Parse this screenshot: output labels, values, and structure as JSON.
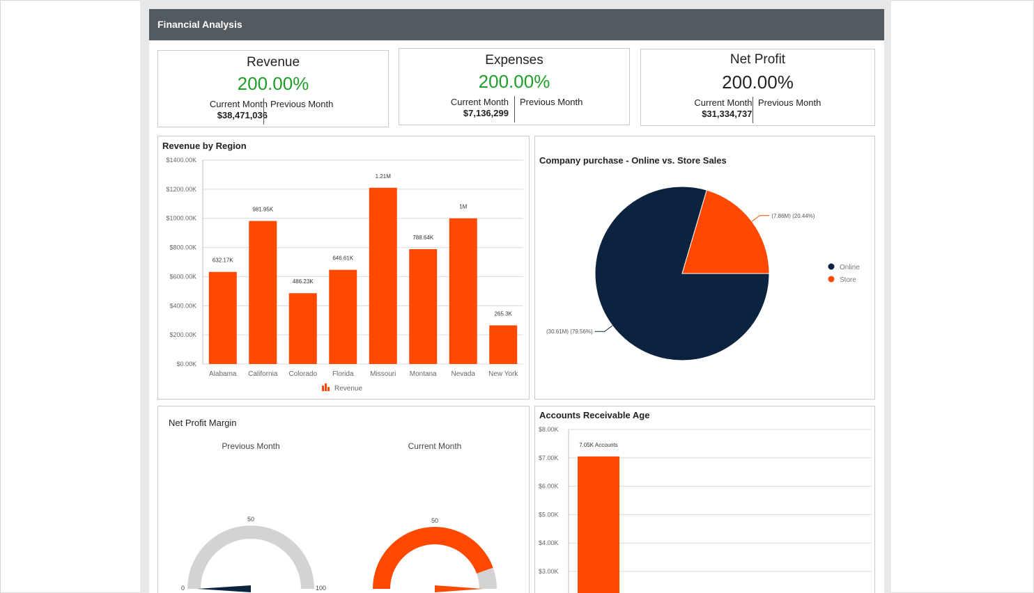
{
  "header": {
    "title": "Financial Analysis"
  },
  "kpis": [
    {
      "title": "Revenue",
      "value": "200.00%",
      "current_label": "Current Month",
      "current_amount": "$38,471,036",
      "previous_label": "Previous Month"
    },
    {
      "title": "Expenses",
      "value": "200.00%",
      "current_label": "Current Month",
      "current_amount": "$7,136,299",
      "previous_label": "Previous Month"
    },
    {
      "title": "Net Profit",
      "value": "200.00%",
      "current_label": "Current Month",
      "current_amount": "$31,334,737",
      "previous_label": "Previous Month"
    }
  ],
  "colors": {
    "accent": "#ff4800",
    "navy": "#0c2340",
    "green": "#1e9e28",
    "header_bg": "#535a60",
    "gauge_gray": "#d3d3d3"
  },
  "chart_data": [
    {
      "type": "bar",
      "title": "Revenue by Region",
      "categories": [
        "Alabama",
        "California",
        "Colorado",
        "Florida",
        "Missouri",
        "Montana",
        "Nevada",
        "New York"
      ],
      "series": [
        {
          "name": "Revenue",
          "values": [
            632170,
            981950,
            486230,
            646610,
            1210000,
            788640,
            1000000,
            265300
          ]
        }
      ],
      "data_labels": [
        "632.17K",
        "981.95K",
        "486.23K",
        "646.61K",
        "1.21M",
        "788.64K",
        "1M",
        "265.3K"
      ],
      "ylim": [
        0,
        1400000
      ],
      "yticks": [
        "$0.00K",
        "$200.00K",
        "$400.00K",
        "$600.00K",
        "$800.00K",
        "$1000.00K",
        "$1200.00K",
        "$1400.00K"
      ],
      "grid": true,
      "legend": "bottom"
    },
    {
      "type": "pie",
      "title": "Company purchase - Online vs. Store Sales",
      "slices": [
        {
          "name": "Online",
          "value": 79.56,
          "label": "(30.61M) (79.56%)"
        },
        {
          "name": "Store",
          "value": 20.44,
          "label": "(7.86M) (20.44%)"
        }
      ],
      "legend": "right"
    },
    {
      "type": "gauge",
      "title": "Net Profit Margin",
      "gauges": [
        {
          "name": "Previous Month",
          "min": 0,
          "mid": 50,
          "max": 100,
          "value": 0
        },
        {
          "name": "Current Month",
          "min": 0,
          "mid": 50,
          "max": 100,
          "value": 100
        }
      ],
      "tick_labels": {
        "min": "0",
        "mid": "50",
        "max": "100"
      }
    },
    {
      "type": "bar",
      "title": "Accounts Receivable Age",
      "categories": [
        ""
      ],
      "series": [
        {
          "name": "Accounts",
          "values": [
            7050
          ]
        }
      ],
      "data_labels": [
        "7.05K Accounts"
      ],
      "yticks": [
        "$3.00K",
        "$4.00K",
        "$5.00K",
        "$6.00K",
        "$7.00K",
        "$8.00K"
      ],
      "ylim": [
        0,
        8000
      ],
      "grid": true
    }
  ]
}
